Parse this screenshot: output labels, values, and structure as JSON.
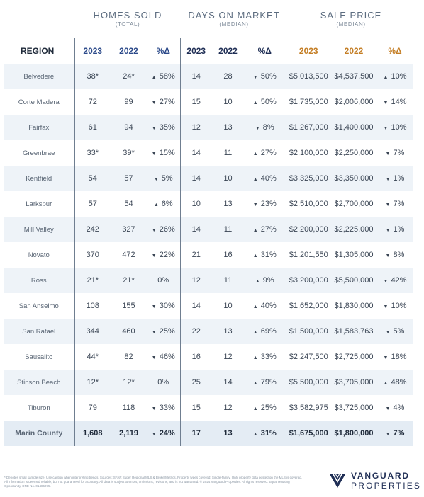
{
  "groups": {
    "homes_sold": {
      "title": "HOMES SOLD",
      "sub": "(TOTAL)"
    },
    "days_on_market": {
      "title": "DAYS ON MARKET",
      "sub": "(MEDIAN)"
    },
    "sale_price": {
      "title": "SALE PRICE",
      "sub": "(MEDIAN)"
    }
  },
  "columns": [
    "REGION",
    "2023",
    "2022",
    "%Δ",
    "2023",
    "2022",
    "%Δ",
    "2023",
    "2022",
    "%Δ"
  ],
  "rows": [
    {
      "region": "Belvedere",
      "hs23": "38*",
      "hs22": "24*",
      "hs_dir": "up",
      "hs_pct": "58%",
      "dm23": "14",
      "dm22": "28",
      "dm_dir": "down",
      "dm_pct": "50%",
      "sp23": "$5,013,500",
      "sp22": "$4,537,500",
      "sp_dir": "up",
      "sp_pct": "10%"
    },
    {
      "region": "Corte Madera",
      "hs23": "72",
      "hs22": "99",
      "hs_dir": "down",
      "hs_pct": "27%",
      "dm23": "15",
      "dm22": "10",
      "dm_dir": "up",
      "dm_pct": "50%",
      "sp23": "$1,735,000",
      "sp22": "$2,006,000",
      "sp_dir": "down",
      "sp_pct": "14%"
    },
    {
      "region": "Fairfax",
      "hs23": "61",
      "hs22": "94",
      "hs_dir": "down",
      "hs_pct": "35%",
      "dm23": "12",
      "dm22": "13",
      "dm_dir": "down",
      "dm_pct": "8%",
      "sp23": "$1,267,000",
      "sp22": "$1,400,000",
      "sp_dir": "down",
      "sp_pct": "10%"
    },
    {
      "region": "Greenbrae",
      "hs23": "33*",
      "hs22": "39*",
      "hs_dir": "down",
      "hs_pct": "15%",
      "dm23": "14",
      "dm22": "11",
      "dm_dir": "up",
      "dm_pct": "27%",
      "sp23": "$2,100,000",
      "sp22": "$2,250,000",
      "sp_dir": "down",
      "sp_pct": "7%"
    },
    {
      "region": "Kentfield",
      "hs23": "54",
      "hs22": "57",
      "hs_dir": "down",
      "hs_pct": "5%",
      "dm23": "14",
      "dm22": "10",
      "dm_dir": "up",
      "dm_pct": "40%",
      "sp23": "$3,325,000",
      "sp22": "$3,350,000",
      "sp_dir": "down",
      "sp_pct": "1%"
    },
    {
      "region": "Larkspur",
      "hs23": "57",
      "hs22": "54",
      "hs_dir": "up",
      "hs_pct": "6%",
      "dm23": "10",
      "dm22": "13",
      "dm_dir": "down",
      "dm_pct": "23%",
      "sp23": "$2,510,000",
      "sp22": "$2,700,000",
      "sp_dir": "down",
      "sp_pct": "7%"
    },
    {
      "region": "Mill Valley",
      "hs23": "242",
      "hs22": "327",
      "hs_dir": "down",
      "hs_pct": "26%",
      "dm23": "14",
      "dm22": "11",
      "dm_dir": "up",
      "dm_pct": "27%",
      "sp23": "$2,200,000",
      "sp22": "$2,225,000",
      "sp_dir": "down",
      "sp_pct": "1%"
    },
    {
      "region": "Novato",
      "hs23": "370",
      "hs22": "472",
      "hs_dir": "down",
      "hs_pct": "22%",
      "dm23": "21",
      "dm22": "16",
      "dm_dir": "up",
      "dm_pct": "31%",
      "sp23": "$1,201,550",
      "sp22": "$1,305,000",
      "sp_dir": "down",
      "sp_pct": "8%"
    },
    {
      "region": "Ross",
      "hs23": "21*",
      "hs22": "21*",
      "hs_dir": "none",
      "hs_pct": "0%",
      "dm23": "12",
      "dm22": "11",
      "dm_dir": "up",
      "dm_pct": "9%",
      "sp23": "$3,200,000",
      "sp22": "$5,500,000",
      "sp_dir": "down",
      "sp_pct": "42%"
    },
    {
      "region": "San Anselmo",
      "hs23": "108",
      "hs22": "155",
      "hs_dir": "down",
      "hs_pct": "30%",
      "dm23": "14",
      "dm22": "10",
      "dm_dir": "up",
      "dm_pct": "40%",
      "sp23": "$1,652,000",
      "sp22": "$1,830,000",
      "sp_dir": "down",
      "sp_pct": "10%"
    },
    {
      "region": "San Rafael",
      "hs23": "344",
      "hs22": "460",
      "hs_dir": "down",
      "hs_pct": "25%",
      "dm23": "22",
      "dm22": "13",
      "dm_dir": "up",
      "dm_pct": "69%",
      "sp23": "$1,500,000",
      "sp22": "$1,583,763",
      "sp_dir": "down",
      "sp_pct": "5%"
    },
    {
      "region": "Sausalito",
      "hs23": "44*",
      "hs22": "82",
      "hs_dir": "down",
      "hs_pct": "46%",
      "dm23": "16",
      "dm22": "12",
      "dm_dir": "up",
      "dm_pct": "33%",
      "sp23": "$2,247,500",
      "sp22": "$2,725,000",
      "sp_dir": "down",
      "sp_pct": "18%"
    },
    {
      "region": "Stinson Beach",
      "hs23": "12*",
      "hs22": "12*",
      "hs_dir": "none",
      "hs_pct": "0%",
      "dm23": "25",
      "dm22": "14",
      "dm_dir": "up",
      "dm_pct": "79%",
      "sp23": "$5,500,000",
      "sp22": "$3,705,000",
      "sp_dir": "up",
      "sp_pct": "48%"
    },
    {
      "region": "Tiburon",
      "hs23": "79",
      "hs22": "118",
      "hs_dir": "down",
      "hs_pct": "33%",
      "dm23": "15",
      "dm22": "12",
      "dm_dir": "up",
      "dm_pct": "25%",
      "sp23": "$3,582,975",
      "sp22": "$3,725,000",
      "sp_dir": "down",
      "sp_pct": "4%"
    },
    {
      "region": "Marin County",
      "hs23": "1,608",
      "hs22": "2,119",
      "hs_dir": "down",
      "hs_pct": "24%",
      "dm23": "17",
      "dm22": "13",
      "dm_dir": "up",
      "dm_pct": "31%",
      "sp23": "$1,675,000",
      "sp22": "$1,800,000",
      "sp_dir": "down",
      "sp_pct": "7%"
    }
  ],
  "icons": {
    "up": "▲",
    "down": "▼"
  },
  "footnote": "* Denotes small sample size. Use caution when interpreting trends. Sources: SFAR Super Regional MLS & BrokerMetrics. Property types covered: Single-family. Only property data posted on the MLS is covered. All information is deemed reliable, but not guaranteed for accuracy. All data is subject to errors, omissions, revisions, and is not warranted. © 2024 Vanguard Properties. All rights reserved. Equal Housing Opportunity. DRE No. 01486075.",
  "brand": {
    "line1": "VANGUARD",
    "line2": "PROPERTIES",
    "logo_icon": "vanguard-v-logo-icon",
    "color": "#1f2e55"
  }
}
